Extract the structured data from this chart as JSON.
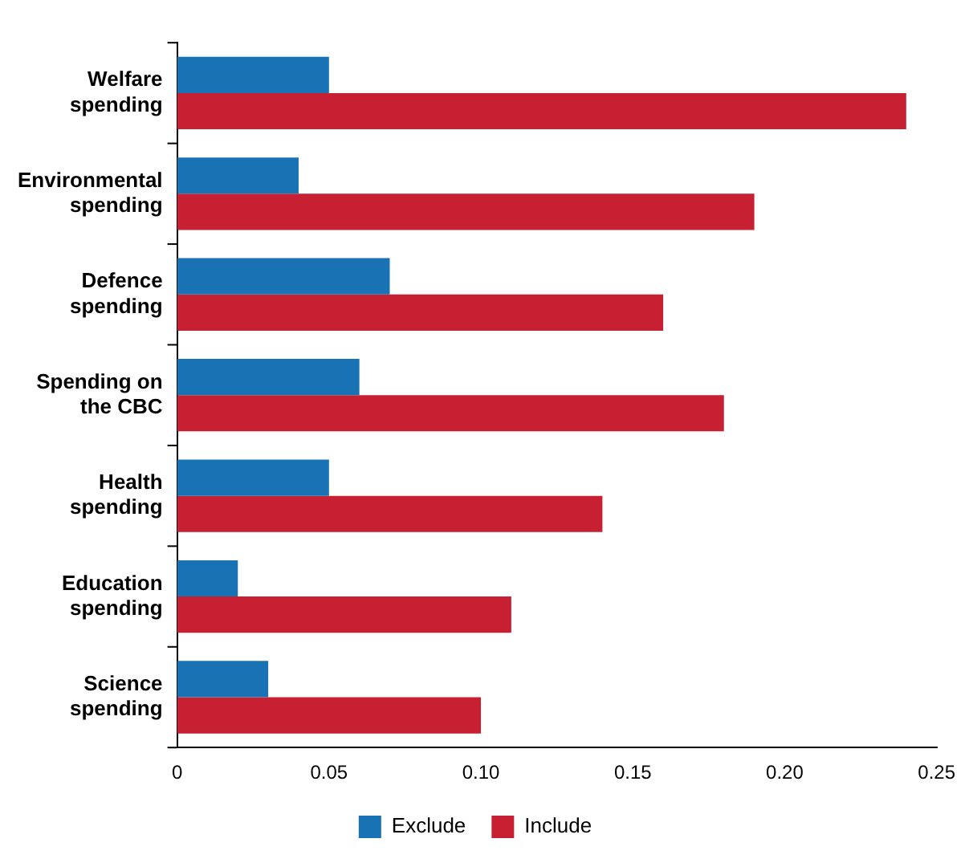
{
  "chart_data": {
    "type": "bar",
    "orientation": "horizontal",
    "categories": [
      "Welfare spending",
      "Environmental spending",
      "Defence spending",
      "Spending on the CBC",
      "Health spending",
      "Education spending",
      "Science spending"
    ],
    "series": [
      {
        "name": "Exclude",
        "color": "#1872b3",
        "values": [
          0.05,
          0.04,
          0.07,
          0.06,
          0.05,
          0.02,
          0.03
        ]
      },
      {
        "name": "Include",
        "color": "#c62032",
        "values": [
          0.24,
          0.19,
          0.16,
          0.18,
          0.14,
          0.11,
          0.1
        ]
      }
    ],
    "xlim": [
      0,
      0.25
    ],
    "xticks": [
      0,
      0.05,
      {
        "value": 0.1,
        "label": "0.10"
      },
      {
        "value": 0.15,
        "label": "0.15"
      },
      {
        "value": 0.2,
        "label": "0.20"
      },
      {
        "value": 0.25,
        "label": "0.25"
      }
    ],
    "grid": false,
    "legend": "bottom"
  }
}
